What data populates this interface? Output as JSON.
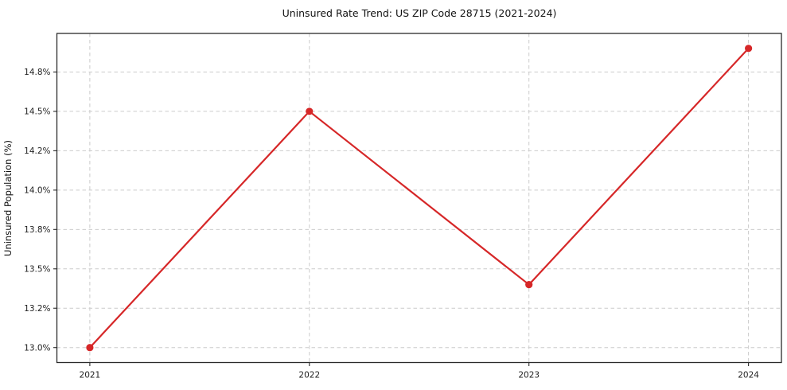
{
  "chart_data": {
    "type": "line",
    "title": "Uninsured Rate Trend: US ZIP Code 28715 (2021-2024)",
    "xlabel": "",
    "ylabel": "Uninsured Population (%)",
    "categories": [
      "2021",
      "2022",
      "2023",
      "2024"
    ],
    "values": [
      13.0,
      14.5,
      13.4,
      14.9
    ],
    "unit": "%",
    "ylim": [
      12.905,
      14.995
    ],
    "yticks": {
      "values": [
        13.0,
        13.25,
        13.5,
        13.75,
        14.0,
        14.25,
        14.5,
        14.75
      ],
      "labels": [
        "13.0%",
        "13.2%",
        "13.5%",
        "13.8%",
        "14.0%",
        "14.2%",
        "14.5%",
        "14.8%"
      ]
    },
    "grid": true,
    "grid_style": "dashed",
    "legend_position": "none",
    "line_color": "#d62728",
    "marker": "circle"
  }
}
